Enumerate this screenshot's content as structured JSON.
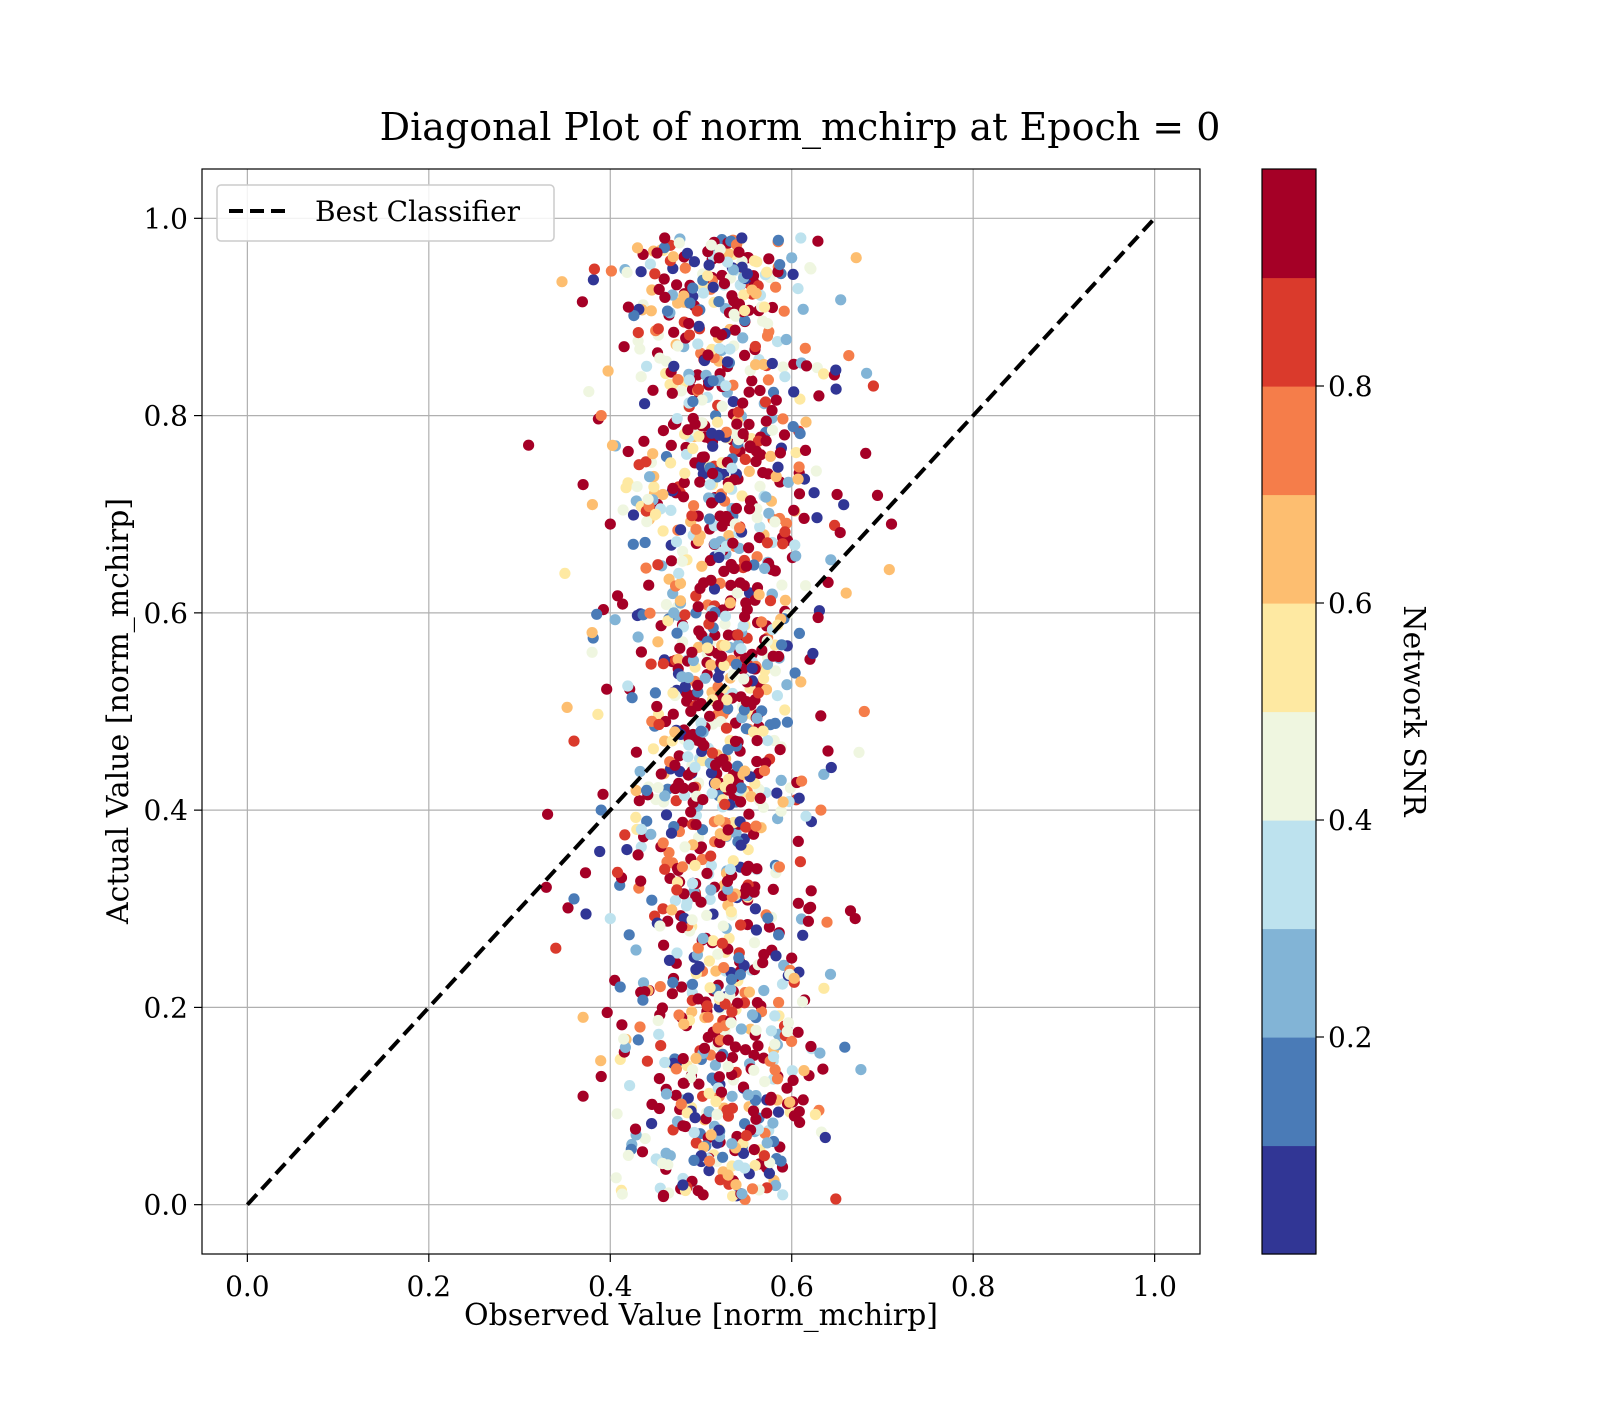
{
  "chart_data": {
    "type": "scatter",
    "title": "Diagonal Plot of norm_mchirp at Epoch = 0",
    "xlabel": "Observed Value [norm_mchirp]",
    "ylabel": "Actual Value [norm_mchirp]",
    "xlim": [
      -0.05,
      1.05
    ],
    "ylim": [
      -0.05,
      1.05
    ],
    "xticks": [
      0.0,
      0.2,
      0.4,
      0.6,
      0.8,
      1.0
    ],
    "yticks": [
      0.0,
      0.2,
      0.4,
      0.6,
      0.8,
      1.0
    ],
    "xtick_labels": [
      "0.0",
      "0.2",
      "0.4",
      "0.6",
      "0.8",
      "1.0"
    ],
    "ytick_labels": [
      "0.0",
      "0.2",
      "0.4",
      "0.6",
      "0.8",
      "1.0"
    ],
    "grid": true,
    "legend": {
      "placement": "upper left",
      "entries": [
        {
          "label": "Best Classifier",
          "style": "dashed",
          "color": "#000000"
        }
      ]
    },
    "reference_line": {
      "name": "Best Classifier",
      "x": [
        0.0,
        1.0
      ],
      "y": [
        0.0,
        1.0
      ],
      "style": "dashed"
    },
    "colorbar": {
      "label": "Network SNR",
      "range": [
        0.0,
        1.0
      ],
      "ticks": [
        0.2,
        0.4,
        0.6,
        0.8
      ],
      "tick_labels": [
        "0.2",
        "0.4",
        "0.6",
        "0.8"
      ],
      "colors": [
        "#313695",
        "#4575b4",
        "#74add1",
        "#abd9e9",
        "#e0f3f8",
        "#fee090",
        "#fdae61",
        "#f46d43",
        "#d73027",
        "#a50026"
      ],
      "display_colors": [
        "#313695",
        "#4a7bb7",
        "#82b4d6",
        "#bde2ee",
        "#eff6e0",
        "#fee9a2",
        "#fdbe70",
        "#f57d4a",
        "#da3a2c",
        "#a50026"
      ]
    },
    "series": [
      {
        "x_distribution": "normal, mean ≈ 0.52, sd ≈ 0.055 (range ≈ 0.31–0.71)",
        "y_distribution": "uniform ≈ 0.0–0.98",
        "color_by": "Network SNR",
        "n_points_approx": 1500,
        "points": [
          [
            0.31,
            0.77,
            0.97
          ],
          [
            0.36,
            0.47,
            0.88
          ],
          [
            0.34,
            0.26,
            0.82
          ],
          [
            0.35,
            0.64,
            0.52
          ],
          [
            0.37,
            0.19,
            0.68
          ],
          [
            0.37,
            0.73,
            0.97
          ],
          [
            0.38,
            0.58,
            0.65
          ],
          [
            0.39,
            0.4,
            0.12
          ],
          [
            0.39,
            0.8,
            0.75
          ],
          [
            0.39,
            0.13,
            0.9
          ],
          [
            0.4,
            0.29,
            0.38
          ],
          [
            0.4,
            0.69,
            0.97
          ],
          [
            0.42,
            0.05,
            0.4
          ],
          [
            0.42,
            0.91,
            0.97
          ],
          [
            0.43,
            0.97,
            0.68
          ],
          [
            0.44,
            0.85,
            0.35
          ],
          [
            0.46,
            0.98,
            0.98
          ],
          [
            0.47,
            0.85,
            0.05
          ],
          [
            0.48,
            0.02,
            0.03
          ],
          [
            0.51,
            0.73,
            0.3
          ],
          [
            0.52,
            0.96,
            0.97
          ],
          [
            0.53,
            0.03,
            0.62
          ],
          [
            0.545,
            0.98,
            0.03
          ],
          [
            0.55,
            0.07,
            0.85
          ],
          [
            0.57,
            0.91,
            0.55
          ],
          [
            0.59,
            0.01,
            0.38
          ],
          [
            0.6,
            0.96,
            0.22
          ],
          [
            0.61,
            0.98,
            0.35
          ],
          [
            0.62,
            0.95,
            0.4
          ],
          [
            0.63,
            0.82,
            0.97
          ],
          [
            0.64,
            0.46,
            0.9
          ],
          [
            0.65,
            0.72,
            0.95
          ],
          [
            0.66,
            0.62,
            0.62
          ],
          [
            0.67,
            0.29,
            0.9
          ],
          [
            0.68,
            0.5,
            0.7
          ],
          [
            0.69,
            0.83,
            0.88
          ],
          [
            0.71,
            0.69,
            0.97
          ],
          [
            0.38,
            0.56,
            0.4
          ],
          [
            0.36,
            0.31,
            0.18
          ],
          [
            0.37,
            0.11,
            0.93
          ],
          [
            0.44,
            0.42,
            0.15
          ],
          [
            0.46,
            0.34,
            0.82
          ],
          [
            0.49,
            0.56,
            0.97
          ],
          [
            0.5,
            0.48,
            0.1
          ],
          [
            0.51,
            0.22,
            0.58
          ],
          [
            0.53,
            0.38,
            0.96
          ],
          [
            0.54,
            0.62,
            0.45
          ],
          [
            0.55,
            0.51,
            0.92
          ],
          [
            0.56,
            0.3,
            0.05
          ],
          [
            0.57,
            0.44,
            0.72
          ],
          [
            0.58,
            0.15,
            0.33
          ],
          [
            0.59,
            0.67,
            0.88
          ],
          [
            0.6,
            0.25,
            0.97
          ],
          [
            0.61,
            0.53,
            0.6
          ],
          [
            0.47,
            0.6,
            0.25
          ],
          [
            0.48,
            0.08,
            0.97
          ],
          [
            0.52,
            0.78,
            0.02
          ],
          [
            0.53,
            0.14,
            0.45
          ],
          [
            0.56,
            0.87,
            0.8
          ],
          [
            0.45,
            0.7,
            0.55
          ]
        ]
      }
    ]
  }
}
